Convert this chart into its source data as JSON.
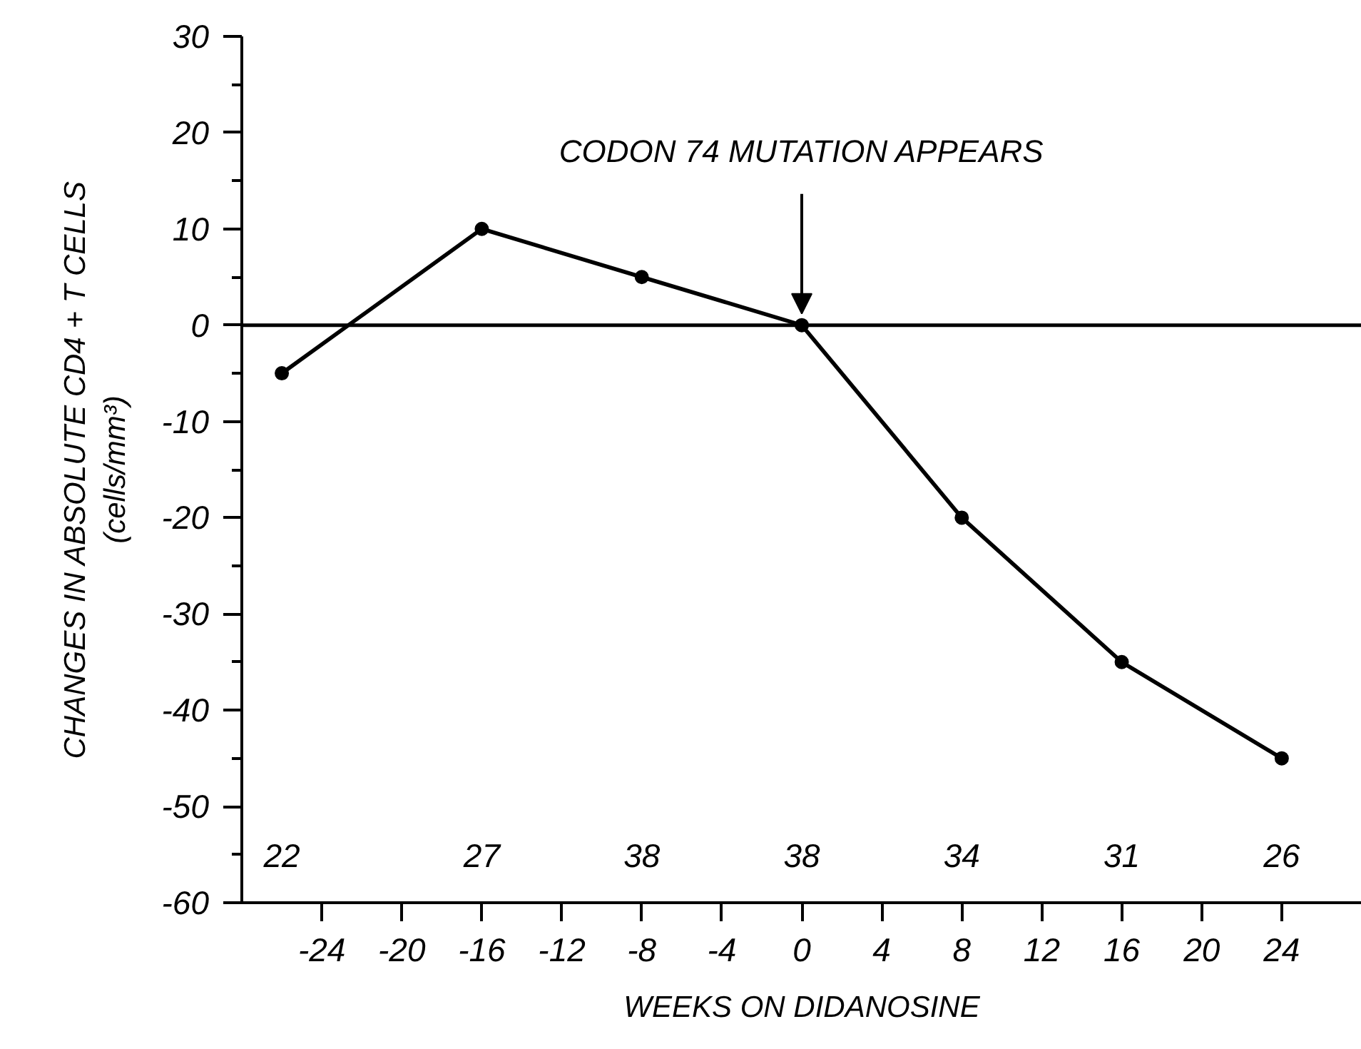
{
  "chart_data": {
    "type": "line",
    "xlabel": "WEEKS ON DIDANOSINE",
    "ylabel": "CHANGES IN ABSOLUTE CD4 + T CELLS\n(cells/mm³)",
    "x": [
      -26,
      -16,
      -8,
      0,
      8,
      16,
      24
    ],
    "series": [
      {
        "color": "#000000",
        "values": [
          -5,
          10,
          5,
          0,
          -20,
          -35,
          -45
        ]
      }
    ],
    "xlim": [
      -28,
      28
    ],
    "xticks": [
      -24,
      -20,
      -16,
      -12,
      -8,
      -4,
      0,
      4,
      8,
      12,
      16,
      20,
      24
    ],
    "ylim": [
      -60,
      30
    ],
    "yticks": [
      -60,
      {
        "value": -55,
        "label": null
      },
      -50,
      {
        "value": -45,
        "label": null
      },
      -40,
      {
        "value": -35,
        "label": null
      },
      -30,
      {
        "value": -25,
        "label": null
      },
      -20,
      {
        "value": -15,
        "label": null
      },
      -10,
      {
        "value": -5,
        "label": null
      },
      0,
      {
        "value": 5,
        "label": null
      },
      10,
      {
        "value": 15,
        "label": null
      },
      20,
      {
        "value": 25,
        "label": null
      },
      30
    ],
    "ref_lines": [
      {
        "axis": "y",
        "value": 0,
        "color": "#000000"
      }
    ],
    "annotations": [
      {
        "text": "CODON 74 MUTATION APPEARS",
        "x": 0,
        "y": 0
      },
      "22",
      "27",
      "38",
      "38",
      "34",
      "31",
      "26"
    ],
    "marker": "circle",
    "line_style": "solid",
    "grid": false
  }
}
